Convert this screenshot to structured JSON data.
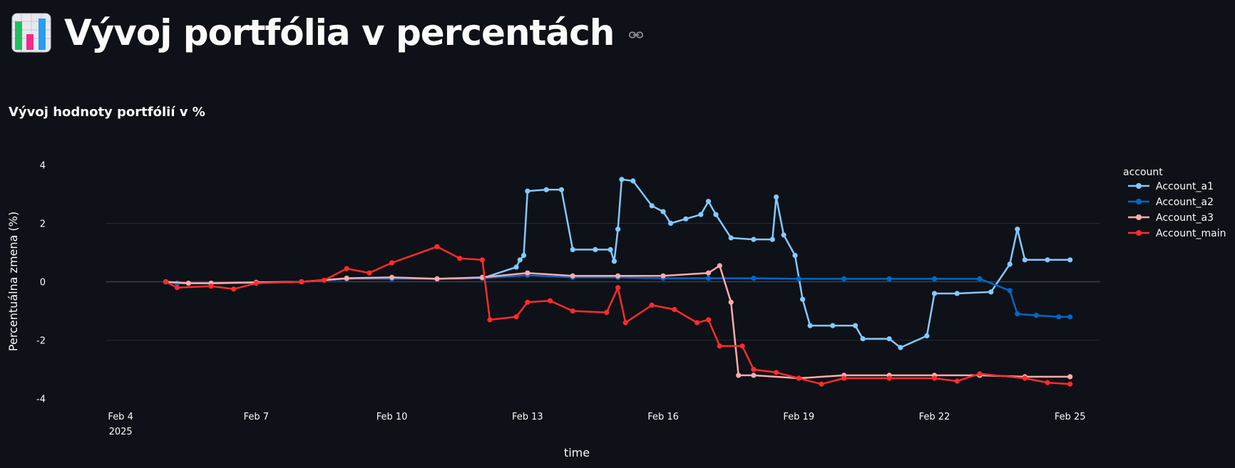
{
  "page": {
    "title": "Výv­oj portfólia v percentách",
    "subheader": "Vývoj hodnoty portfólií v %",
    "icon": "bar-chart-icon",
    "link_icon": "link-icon"
  },
  "chart_data": {
    "type": "line",
    "title": "",
    "xlabel": "time",
    "ylabel": "Percentuálna zmena (%)",
    "x_axis_type": "date",
    "x_range": [
      "2025-02-03T16:00",
      "2025-02-25T16:00"
    ],
    "ylim": [
      -4.3,
      4.4
    ],
    "y_ticks": [
      4,
      2,
      0,
      -2,
      -4
    ],
    "x_ticks": [
      {
        "date": "2025-02-04",
        "label": "Feb 4",
        "sublabel": "2025"
      },
      {
        "date": "2025-02-07",
        "label": "Feb 7"
      },
      {
        "date": "2025-02-10",
        "label": "Feb 10"
      },
      {
        "date": "2025-02-13",
        "label": "Feb 13"
      },
      {
        "date": "2025-02-16",
        "label": "Feb 16"
      },
      {
        "date": "2025-02-19",
        "label": "Feb 19"
      },
      {
        "date": "2025-02-22",
        "label": "Feb 22"
      },
      {
        "date": "2025-02-25",
        "label": "Feb 25"
      }
    ],
    "grid": true,
    "legend_title": "account",
    "legend_position": "right",
    "series": [
      {
        "name": "Account_a1",
        "color": "#83c9ff",
        "points": [
          [
            "2025-02-05T00:00",
            0.0
          ],
          [
            "2025-02-05T06:00",
            -0.05
          ],
          [
            "2025-02-06T00:00",
            -0.05
          ],
          [
            "2025-02-07T00:00",
            -0.03
          ],
          [
            "2025-02-08T00:00",
            0.0
          ],
          [
            "2025-02-09T00:00",
            0.1
          ],
          [
            "2025-02-10T00:00",
            0.12
          ],
          [
            "2025-02-11T00:00",
            0.1
          ],
          [
            "2025-02-12T00:00",
            0.12
          ],
          [
            "2025-02-12T18:00",
            0.5
          ],
          [
            "2025-02-12T20:00",
            0.75
          ],
          [
            "2025-02-12T22:00",
            0.9
          ],
          [
            "2025-02-13T00:00",
            3.1
          ],
          [
            "2025-02-13T10:00",
            3.15
          ],
          [
            "2025-02-13T18:00",
            3.15
          ],
          [
            "2025-02-14T00:00",
            1.1
          ],
          [
            "2025-02-14T12:00",
            1.1
          ],
          [
            "2025-02-14T20:00",
            1.1
          ],
          [
            "2025-02-14T22:00",
            0.7
          ],
          [
            "2025-02-15T00:00",
            1.8
          ],
          [
            "2025-02-15T02:00",
            3.5
          ],
          [
            "2025-02-15T08:00",
            3.45
          ],
          [
            "2025-02-15T18:00",
            2.6
          ],
          [
            "2025-02-16T00:00",
            2.4
          ],
          [
            "2025-02-16T04:00",
            2.0
          ],
          [
            "2025-02-16T12:00",
            2.15
          ],
          [
            "2025-02-16T20:00",
            2.3
          ],
          [
            "2025-02-17T00:00",
            2.75
          ],
          [
            "2025-02-17T04:00",
            2.3
          ],
          [
            "2025-02-17T12:00",
            1.5
          ],
          [
            "2025-02-18T00:00",
            1.45
          ],
          [
            "2025-02-18T10:00",
            1.45
          ],
          [
            "2025-02-18T12:00",
            2.9
          ],
          [
            "2025-02-18T16:00",
            1.6
          ],
          [
            "2025-02-18T22:00",
            0.9
          ],
          [
            "2025-02-19T02:00",
            -0.6
          ],
          [
            "2025-02-19T06:00",
            -1.5
          ],
          [
            "2025-02-19T18:00",
            -1.5
          ],
          [
            "2025-02-20T06:00",
            -1.5
          ],
          [
            "2025-02-20T10:00",
            -1.95
          ],
          [
            "2025-02-21T00:00",
            -1.95
          ],
          [
            "2025-02-21T06:00",
            -2.25
          ],
          [
            "2025-02-21T20:00",
            -1.85
          ],
          [
            "2025-02-22T00:00",
            -0.4
          ],
          [
            "2025-02-22T12:00",
            -0.4
          ],
          [
            "2025-02-23T06:00",
            -0.35
          ],
          [
            "2025-02-23T16:00",
            0.6
          ],
          [
            "2025-02-23T20:00",
            1.8
          ],
          [
            "2025-02-24T00:00",
            0.75
          ],
          [
            "2025-02-24T12:00",
            0.75
          ],
          [
            "2025-02-25T00:00",
            0.75
          ]
        ]
      },
      {
        "name": "Account_a2",
        "color": "#0068c9",
        "points": [
          [
            "2025-02-05T00:00",
            0.0
          ],
          [
            "2025-02-05T06:00",
            -0.05
          ],
          [
            "2025-02-06T00:00",
            -0.05
          ],
          [
            "2025-02-07T00:00",
            -0.03
          ],
          [
            "2025-02-08T00:00",
            0.0
          ],
          [
            "2025-02-09T00:00",
            0.1
          ],
          [
            "2025-02-10T00:00",
            0.1
          ],
          [
            "2025-02-11T00:00",
            0.1
          ],
          [
            "2025-02-12T00:00",
            0.12
          ],
          [
            "2025-02-13T00:00",
            0.22
          ],
          [
            "2025-02-14T00:00",
            0.15
          ],
          [
            "2025-02-15T00:00",
            0.15
          ],
          [
            "2025-02-16T00:00",
            0.12
          ],
          [
            "2025-02-17T00:00",
            0.12
          ],
          [
            "2025-02-18T00:00",
            0.12
          ],
          [
            "2025-02-19T00:00",
            0.1
          ],
          [
            "2025-02-20T00:00",
            0.1
          ],
          [
            "2025-02-21T00:00",
            0.1
          ],
          [
            "2025-02-22T00:00",
            0.1
          ],
          [
            "2025-02-23T00:00",
            0.1
          ],
          [
            "2025-02-23T16:00",
            -0.3
          ],
          [
            "2025-02-23T20:00",
            -1.1
          ],
          [
            "2025-02-24T06:00",
            -1.15
          ],
          [
            "2025-02-24T18:00",
            -1.2
          ],
          [
            "2025-02-25T00:00",
            -1.2
          ]
        ]
      },
      {
        "name": "Account_a3",
        "color": "#ffabab",
        "points": [
          [
            "2025-02-05T00:00",
            0.0
          ],
          [
            "2025-02-05T12:00",
            -0.05
          ],
          [
            "2025-02-06T00:00",
            -0.05
          ],
          [
            "2025-02-07T00:00",
            -0.02
          ],
          [
            "2025-02-08T00:00",
            0.0
          ],
          [
            "2025-02-09T00:00",
            0.12
          ],
          [
            "2025-02-10T00:00",
            0.15
          ],
          [
            "2025-02-11T00:00",
            0.1
          ],
          [
            "2025-02-12T00:00",
            0.15
          ],
          [
            "2025-02-13T00:00",
            0.3
          ],
          [
            "2025-02-14T00:00",
            0.2
          ],
          [
            "2025-02-15T00:00",
            0.2
          ],
          [
            "2025-02-16T00:00",
            0.2
          ],
          [
            "2025-02-17T00:00",
            0.3
          ],
          [
            "2025-02-17T06:00",
            0.55
          ],
          [
            "2025-02-17T12:00",
            -0.7
          ],
          [
            "2025-02-17T16:00",
            -3.2
          ],
          [
            "2025-02-18T00:00",
            -3.2
          ],
          [
            "2025-02-19T00:00",
            -3.3
          ],
          [
            "2025-02-20T00:00",
            -3.2
          ],
          [
            "2025-02-21T00:00",
            -3.2
          ],
          [
            "2025-02-22T00:00",
            -3.2
          ],
          [
            "2025-02-23T00:00",
            -3.2
          ],
          [
            "2025-02-24T00:00",
            -3.25
          ],
          [
            "2025-02-25T00:00",
            -3.25
          ]
        ]
      },
      {
        "name": "Account_main",
        "color": "#ff2b2b",
        "points": [
          [
            "2025-02-05T00:00",
            0.0
          ],
          [
            "2025-02-05T06:00",
            -0.2
          ],
          [
            "2025-02-06T00:00",
            -0.15
          ],
          [
            "2025-02-06T12:00",
            -0.25
          ],
          [
            "2025-02-07T00:00",
            -0.05
          ],
          [
            "2025-02-08T00:00",
            0.0
          ],
          [
            "2025-02-08T12:00",
            0.05
          ],
          [
            "2025-02-09T00:00",
            0.45
          ],
          [
            "2025-02-09T12:00",
            0.3
          ],
          [
            "2025-02-10T00:00",
            0.65
          ],
          [
            "2025-02-11T00:00",
            1.2
          ],
          [
            "2025-02-11T12:00",
            0.8
          ],
          [
            "2025-02-12T00:00",
            0.75
          ],
          [
            "2025-02-12T04:00",
            -1.3
          ],
          [
            "2025-02-12T18:00",
            -1.2
          ],
          [
            "2025-02-13T00:00",
            -0.7
          ],
          [
            "2025-02-13T12:00",
            -0.65
          ],
          [
            "2025-02-14T00:00",
            -1.0
          ],
          [
            "2025-02-14T18:00",
            -1.05
          ],
          [
            "2025-02-15T00:00",
            -0.2
          ],
          [
            "2025-02-15T04:00",
            -1.4
          ],
          [
            "2025-02-15T18:00",
            -0.8
          ],
          [
            "2025-02-16T06:00",
            -0.95
          ],
          [
            "2025-02-16T18:00",
            -1.4
          ],
          [
            "2025-02-17T00:00",
            -1.3
          ],
          [
            "2025-02-17T06:00",
            -2.2
          ],
          [
            "2025-02-17T18:00",
            -2.2
          ],
          [
            "2025-02-18T00:00",
            -3.0
          ],
          [
            "2025-02-18T12:00",
            -3.1
          ],
          [
            "2025-02-19T00:00",
            -3.3
          ],
          [
            "2025-02-19T12:00",
            -3.5
          ],
          [
            "2025-02-20T00:00",
            -3.3
          ],
          [
            "2025-02-21T00:00",
            -3.3
          ],
          [
            "2025-02-22T00:00",
            -3.3
          ],
          [
            "2025-02-22T12:00",
            -3.4
          ],
          [
            "2025-02-23T00:00",
            -3.15
          ],
          [
            "2025-02-24T00:00",
            -3.3
          ],
          [
            "2025-02-24T12:00",
            -3.45
          ],
          [
            "2025-02-25T00:00",
            -3.5
          ]
        ]
      }
    ]
  }
}
